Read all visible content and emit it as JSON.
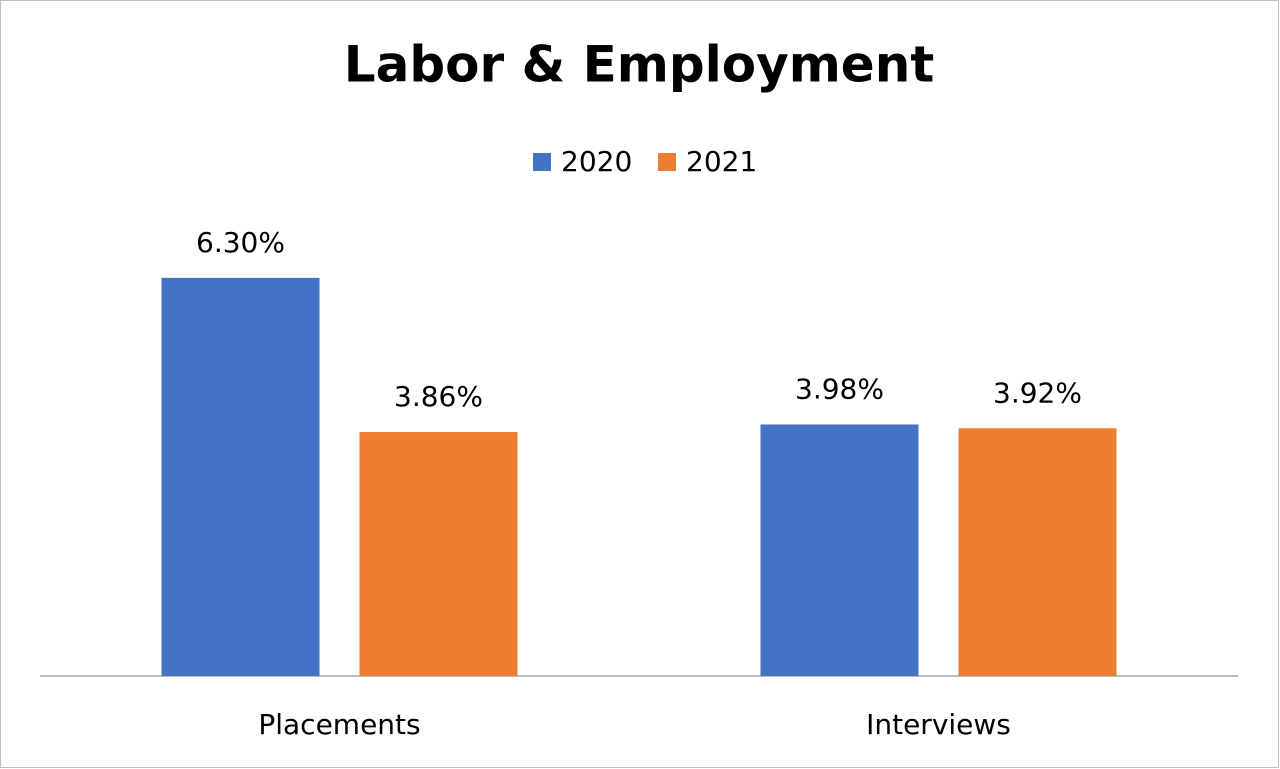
{
  "chart_data": {
    "type": "bar",
    "title": "Labor & Employment",
    "categories": [
      "Placements",
      "Interviews"
    ],
    "series": [
      {
        "name": "2020",
        "color": "#4472c4",
        "values": [
          6.3,
          3.98
        ],
        "value_labels": [
          "6.30%",
          "3.98%"
        ]
      },
      {
        "name": "2021",
        "color": "#ed7d31",
        "values": [
          3.86,
          3.92
        ],
        "value_labels": [
          "3.86%",
          "3.92%"
        ]
      }
    ],
    "ylim": [
      0,
      7
    ],
    "legend": "top"
  }
}
